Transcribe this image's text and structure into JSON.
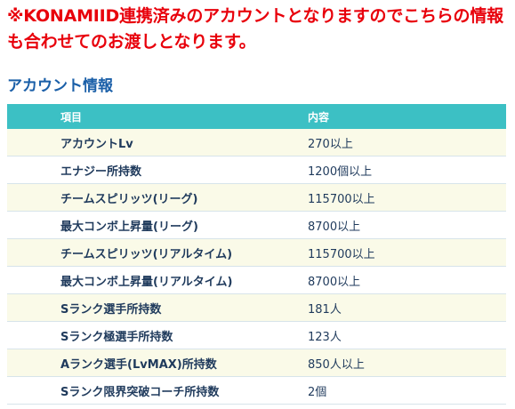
{
  "notice": {
    "text": "※KONAMIID連携済みのアカウントとなりますのでこちらの情報も合わせてのお渡しとなります。"
  },
  "account_info": {
    "title": "アカウント情報",
    "headers": {
      "item": "項目",
      "value": "内容"
    },
    "rows": [
      {
        "item": "アカウントLv",
        "value": "270以上"
      },
      {
        "item": "エナジー所持数",
        "value": "1200個以上"
      },
      {
        "item": "チームスピリッツ(リーグ)",
        "value": "115700以上"
      },
      {
        "item": "最大コンボ上昇量(リーグ)",
        "value": "8700以上"
      },
      {
        "item": "チームスピリッツ(リアルタイム)",
        "value": "115700以上"
      },
      {
        "item": "最大コンボ上昇量(リアルタイム)",
        "value": "8700以上"
      },
      {
        "item": "Sランク選手所持数",
        "value": "181人"
      },
      {
        "item": "Sランク極選手所持数",
        "value": "123人"
      },
      {
        "item": "Aランク選手(LvMAX)所持数",
        "value": "850人以上"
      },
      {
        "item": "Sランク限界突破コーチ所持数",
        "value": "2個"
      }
    ]
  },
  "colors": {
    "notice": "#e8000b",
    "title": "#1a5fa8",
    "header_bg": "#3cc0c4",
    "row_alt_bg": "#fafae8",
    "text": "#1f3a5c"
  }
}
